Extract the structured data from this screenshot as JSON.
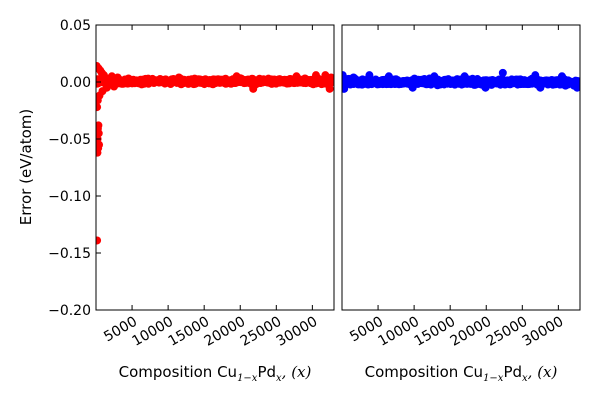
{
  "chart_data": [
    {
      "type": "scatter",
      "panel": "left",
      "color": "#ff0000",
      "xlim": [
        0,
        33000
      ],
      "ylim": [
        -0.2,
        0.05
      ],
      "xticks": [
        5000,
        10000,
        15000,
        20000,
        25000,
        30000
      ],
      "xtick_labels": [
        "5000",
        "10000",
        "15000",
        "20000",
        "25000",
        "30000"
      ],
      "yticks": [
        -0.2,
        -0.15,
        -0.1,
        -0.05,
        0.0,
        0.05
      ],
      "ytick_labels": [
        "−0.20",
        "−0.15",
        "−0.10",
        "−0.05",
        "0.00",
        "0.05"
      ],
      "xlabel_prefix": "Composition Cu",
      "xlabel_sub1": "1−x",
      "xlabel_mid": "Pd",
      "xlabel_sub2": "x",
      "xlabel_suffix": ", (x)",
      "ylabel": "Error (eV/atom)",
      "band": {
        "x_start": 0,
        "x_end": 32800,
        "y_low": -0.0025,
        "y_high": 0.0035
      },
      "outliers": [
        {
          "x": 150,
          "y": -0.139
        },
        {
          "x": 200,
          "y": -0.062
        },
        {
          "x": 300,
          "y": -0.058
        },
        {
          "x": 220,
          "y": -0.05
        },
        {
          "x": 380,
          "y": -0.045
        },
        {
          "x": 260,
          "y": -0.041
        },
        {
          "x": 420,
          "y": -0.055
        },
        {
          "x": 330,
          "y": -0.038
        },
        {
          "x": 150,
          "y": -0.022
        },
        {
          "x": 250,
          "y": -0.016
        },
        {
          "x": 480,
          "y": -0.012
        },
        {
          "x": 100,
          "y": 0.014
        },
        {
          "x": 350,
          "y": 0.012
        },
        {
          "x": 600,
          "y": 0.01
        },
        {
          "x": 800,
          "y": 0.008
        },
        {
          "x": 1100,
          "y": 0.006
        },
        {
          "x": 900,
          "y": -0.008
        },
        {
          "x": 1500,
          "y": -0.005
        },
        {
          "x": 2200,
          "y": 0.005
        },
        {
          "x": 2500,
          "y": -0.004
        },
        {
          "x": 3000,
          "y": 0.004
        },
        {
          "x": 11500,
          "y": 0.004
        },
        {
          "x": 19500,
          "y": 0.005
        },
        {
          "x": 21800,
          "y": -0.006
        },
        {
          "x": 27800,
          "y": 0.005
        },
        {
          "x": 30500,
          "y": 0.006
        },
        {
          "x": 31800,
          "y": 0.006
        },
        {
          "x": 32400,
          "y": -0.006
        },
        {
          "x": 32600,
          "y": 0.004
        }
      ]
    },
    {
      "type": "scatter",
      "panel": "right",
      "color": "#0000ff",
      "xlim": [
        0,
        33000
      ],
      "ylim": [
        -0.2,
        0.05
      ],
      "xticks": [
        5000,
        10000,
        15000,
        20000,
        25000,
        30000
      ],
      "xtick_labels": [
        "5000",
        "10000",
        "15000",
        "20000",
        "25000",
        "30000"
      ],
      "xlabel_prefix": "Composition Cu",
      "xlabel_sub1": "1−x",
      "xlabel_mid": "Pd",
      "xlabel_sub2": "x",
      "xlabel_suffix": ", (x)",
      "band": {
        "x_start": 0,
        "x_end": 32800,
        "y_low": -0.0035,
        "y_high": 0.0035
      },
      "outliers": [
        {
          "x": 100,
          "y": 0.006
        },
        {
          "x": 300,
          "y": -0.006
        },
        {
          "x": 1600,
          "y": 0.004
        },
        {
          "x": 3800,
          "y": 0.006
        },
        {
          "x": 6500,
          "y": 0.005
        },
        {
          "x": 9800,
          "y": -0.005
        },
        {
          "x": 12800,
          "y": 0.005
        },
        {
          "x": 17000,
          "y": 0.005
        },
        {
          "x": 19900,
          "y": -0.005
        },
        {
          "x": 22300,
          "y": 0.008
        },
        {
          "x": 26800,
          "y": 0.006
        },
        {
          "x": 27500,
          "y": -0.005
        },
        {
          "x": 30500,
          "y": 0.005
        },
        {
          "x": 32600,
          "y": -0.005
        }
      ]
    }
  ]
}
